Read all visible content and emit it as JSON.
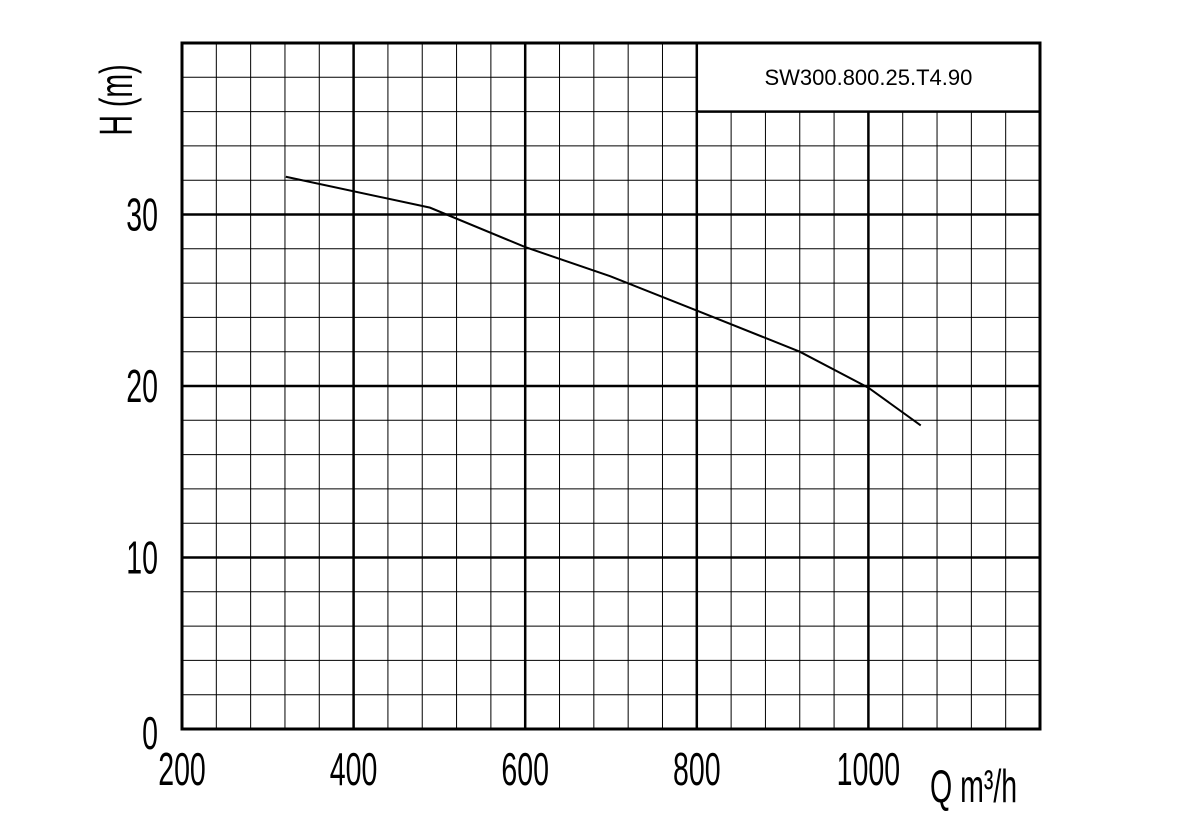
{
  "chart_data": {
    "type": "line",
    "title": "SW300.800.25.T4.90",
    "x_label": "Q m³/h",
    "y_label": "H (m)",
    "series": [
      {
        "name": "H",
        "color": "#000000",
        "x": [
          321,
          489,
          600,
          699,
          800,
          920,
          1000,
          1061
        ],
        "values": [
          32.2,
          30.4,
          28.1,
          26.4,
          24.4,
          22.0,
          19.9,
          17.7
        ]
      }
    ],
    "xlim": [
      200,
      1200
    ],
    "xticks": [
      200,
      400,
      600,
      800,
      1000
    ],
    "ylim": [
      0,
      40
    ],
    "yticks": [
      0,
      10,
      20,
      30
    ],
    "grid": true
  }
}
